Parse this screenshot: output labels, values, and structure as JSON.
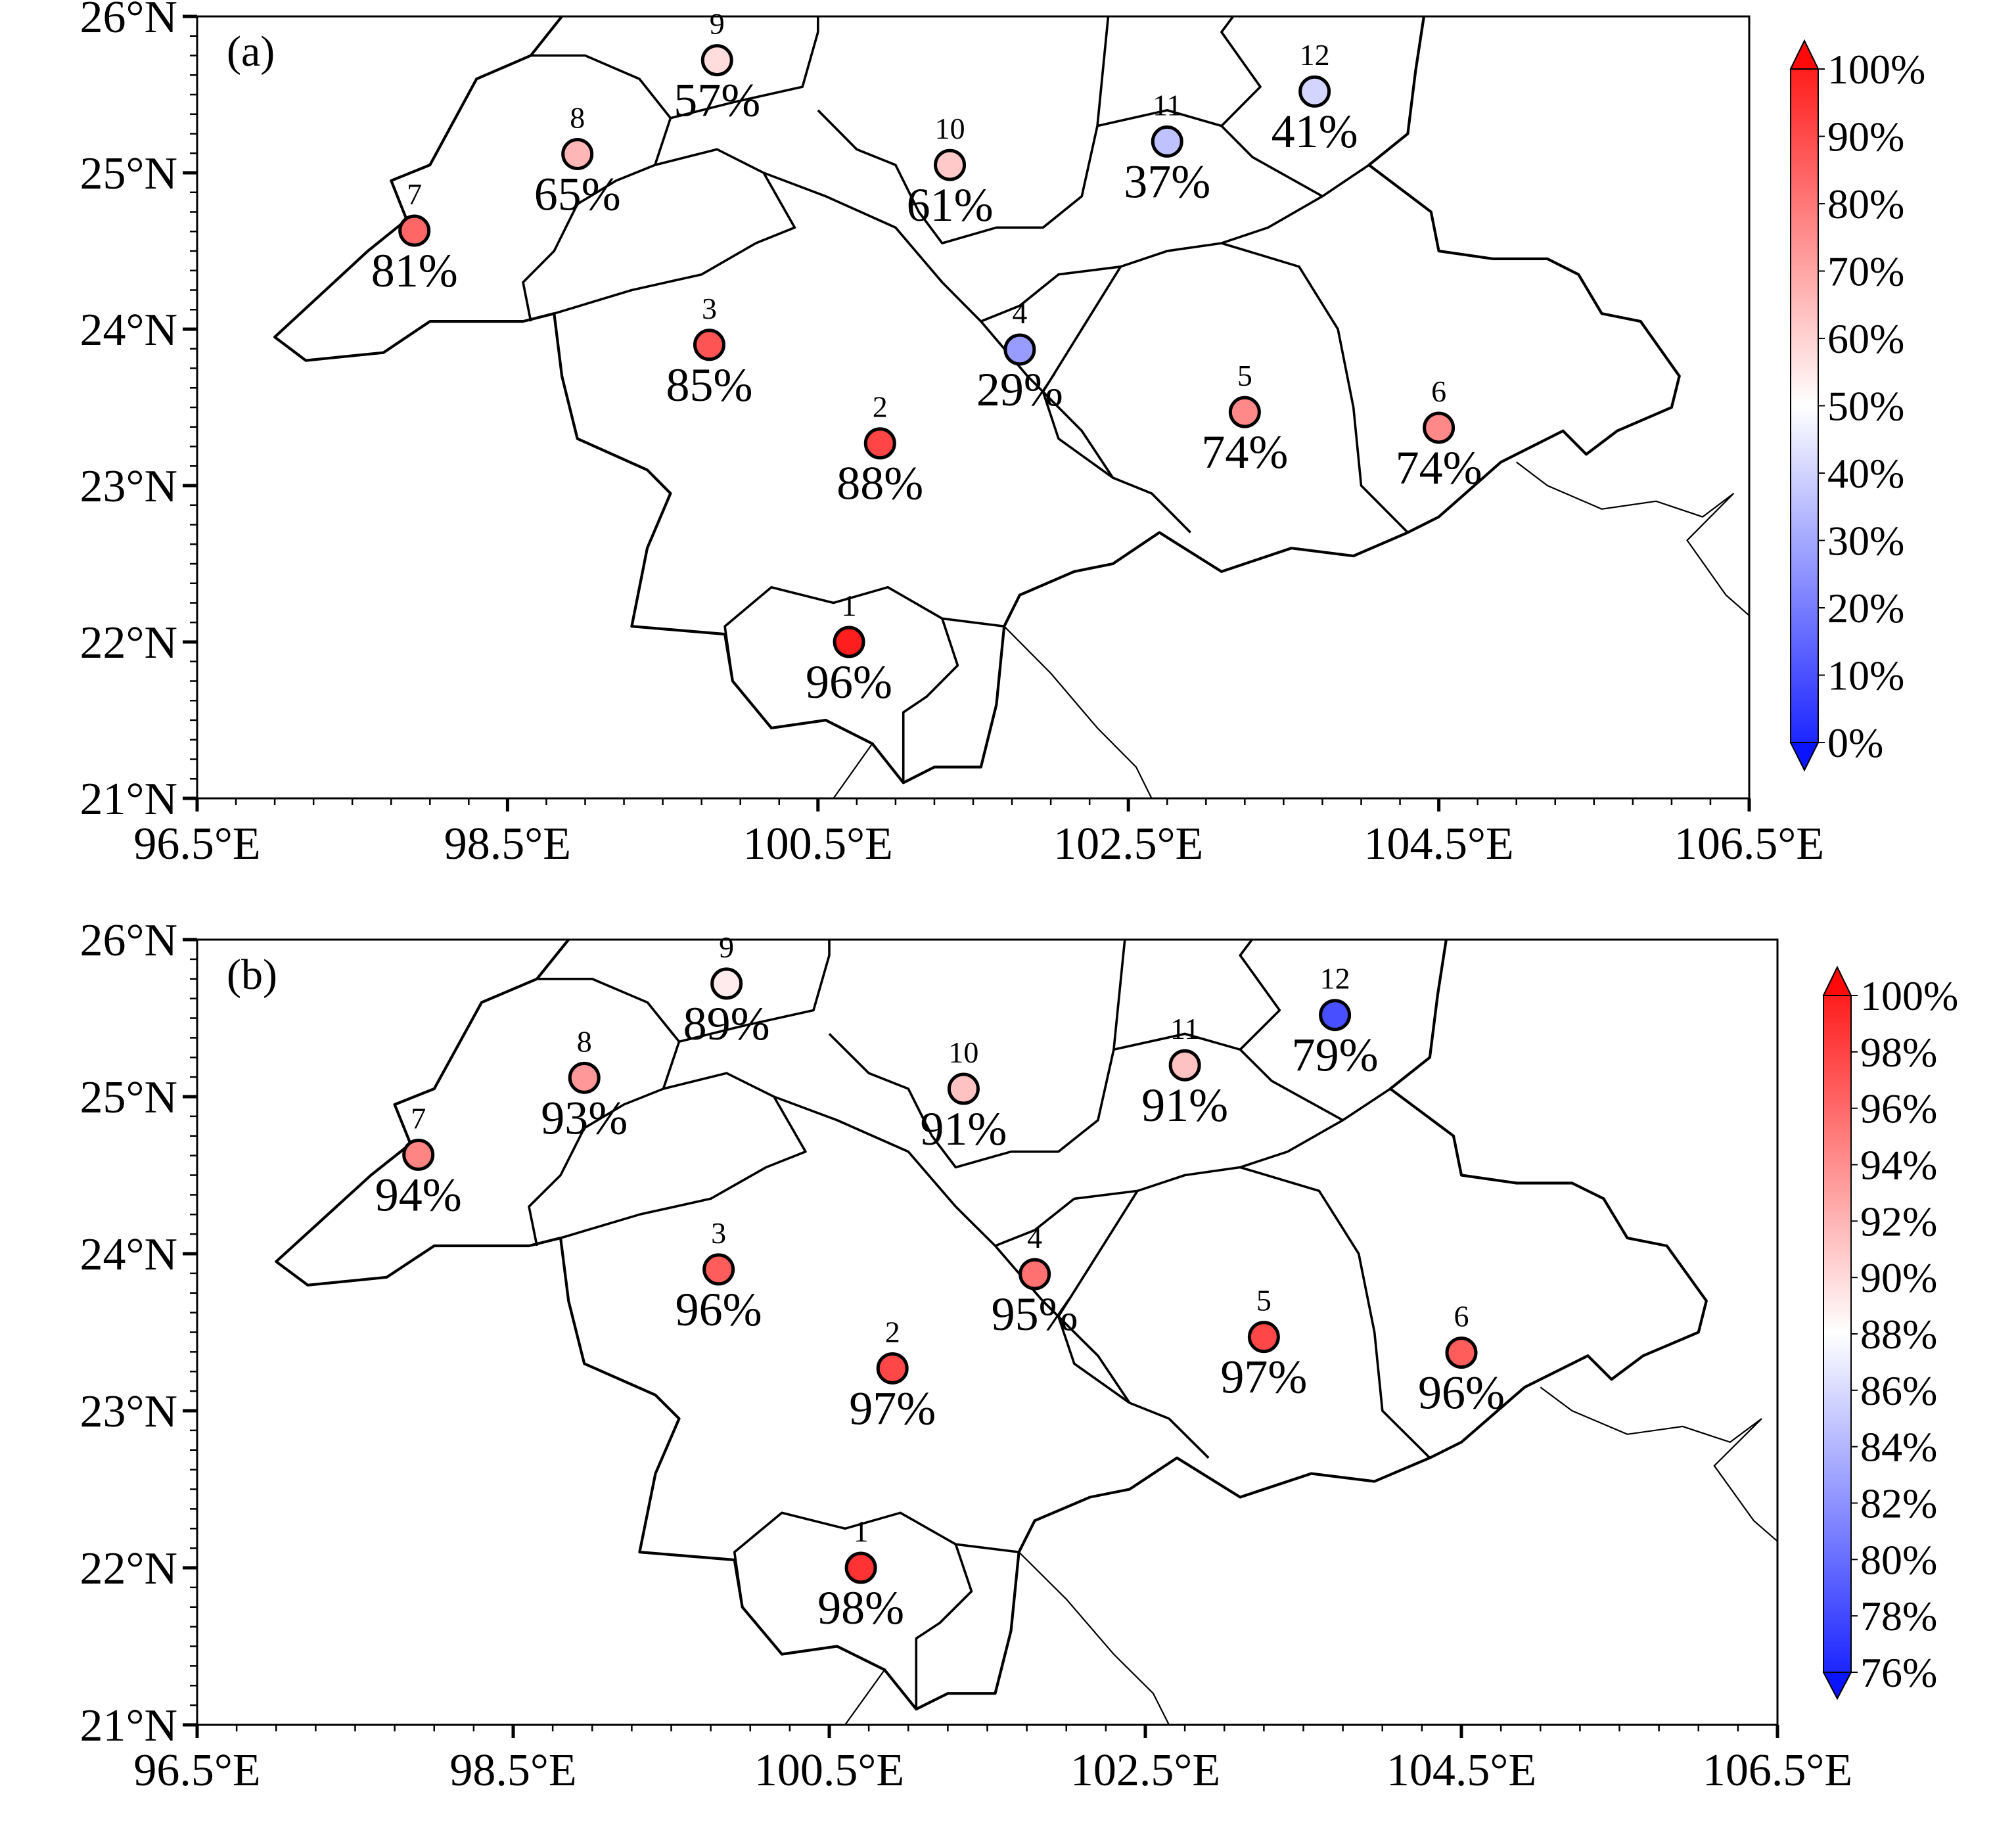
{
  "x_ticks": [
    "96.5°E",
    "98.5°E",
    "100.5°E",
    "102.5°E",
    "104.5°E",
    "106.5°E"
  ],
  "x_tick_values": [
    96.5,
    98.5,
    100.5,
    102.5,
    104.5,
    106.5
  ],
  "y_ticks": [
    "21°N",
    "22°N",
    "23°N",
    "24°N",
    "25°N",
    "26°N"
  ],
  "y_tick_values": [
    21,
    22,
    23,
    24,
    25,
    26
  ],
  "panels": [
    {
      "label": "(a)",
      "colorbar": {
        "labels": [
          "100%",
          "90%",
          "80%",
          "70%",
          "60%",
          "50%",
          "40%",
          "30%",
          "20%",
          "10%",
          "0%"
        ],
        "min": 0,
        "max": 100,
        "low_color": "#0a14ff",
        "mid_color": "#ffffff",
        "high_color": "#ff0a0a"
      },
      "stations": [
        {
          "id": "1",
          "text": "96%",
          "value": 96,
          "lon": 100.7,
          "lat": 22.0
        },
        {
          "id": "2",
          "text": "88%",
          "value": 88,
          "lon": 100.9,
          "lat": 23.27
        },
        {
          "id": "3",
          "text": "85%",
          "value": 85,
          "lon": 99.8,
          "lat": 23.9
        },
        {
          "id": "4",
          "text": "29%",
          "value": 29,
          "lon": 101.8,
          "lat": 23.87
        },
        {
          "id": "5",
          "text": "74%",
          "value": 74,
          "lon": 103.25,
          "lat": 23.47
        },
        {
          "id": "6",
          "text": "74%",
          "value": 74,
          "lon": 104.5,
          "lat": 23.37
        },
        {
          "id": "7",
          "text": "81%",
          "value": 81,
          "lon": 97.9,
          "lat": 24.63
        },
        {
          "id": "8",
          "text": "65%",
          "value": 65,
          "lon": 98.95,
          "lat": 25.12
        },
        {
          "id": "9",
          "text": "57%",
          "value": 57,
          "lon": 99.85,
          "lat": 25.72
        },
        {
          "id": "10",
          "text": "61%",
          "value": 61,
          "lon": 101.35,
          "lat": 25.05
        },
        {
          "id": "11",
          "text": "37%",
          "value": 37,
          "lon": 102.75,
          "lat": 25.2
        },
        {
          "id": "12",
          "text": "41%",
          "value": 41,
          "lon": 103.7,
          "lat": 25.52
        }
      ]
    },
    {
      "label": "(b)",
      "colorbar": {
        "labels": [
          "100%",
          "98%",
          "96%",
          "94%",
          "92%",
          "90%",
          "88%",
          "86%",
          "84%",
          "82%",
          "80%",
          "78%",
          "76%"
        ],
        "min": 76,
        "max": 100,
        "low_color": "#0a14ff",
        "mid_color": "#ffffff",
        "high_color": "#ff0a0a"
      },
      "stations": [
        {
          "id": "1",
          "text": "98%",
          "value": 98,
          "lon": 100.7,
          "lat": 22.0
        },
        {
          "id": "2",
          "text": "97%",
          "value": 97,
          "lon": 100.9,
          "lat": 23.27
        },
        {
          "id": "3",
          "text": "96%",
          "value": 96,
          "lon": 99.8,
          "lat": 23.9
        },
        {
          "id": "4",
          "text": "95%",
          "value": 95,
          "lon": 101.8,
          "lat": 23.87
        },
        {
          "id": "5",
          "text": "97%",
          "value": 97,
          "lon": 103.25,
          "lat": 23.47
        },
        {
          "id": "6",
          "text": "96%",
          "value": 96,
          "lon": 104.5,
          "lat": 23.37
        },
        {
          "id": "7",
          "text": "94%",
          "value": 94,
          "lon": 97.9,
          "lat": 24.63
        },
        {
          "id": "8",
          "text": "93%",
          "value": 93,
          "lon": 98.95,
          "lat": 25.12
        },
        {
          "id": "9",
          "text": "89%",
          "value": 89,
          "lon": 99.85,
          "lat": 25.72
        },
        {
          "id": "10",
          "text": "91%",
          "value": 91,
          "lon": 101.35,
          "lat": 25.05
        },
        {
          "id": "11",
          "text": "91%",
          "value": 91,
          "lon": 102.75,
          "lat": 25.2
        },
        {
          "id": "12",
          "text": "79%",
          "value": 79,
          "lon": 103.7,
          "lat": 25.52
        }
      ]
    }
  ]
}
